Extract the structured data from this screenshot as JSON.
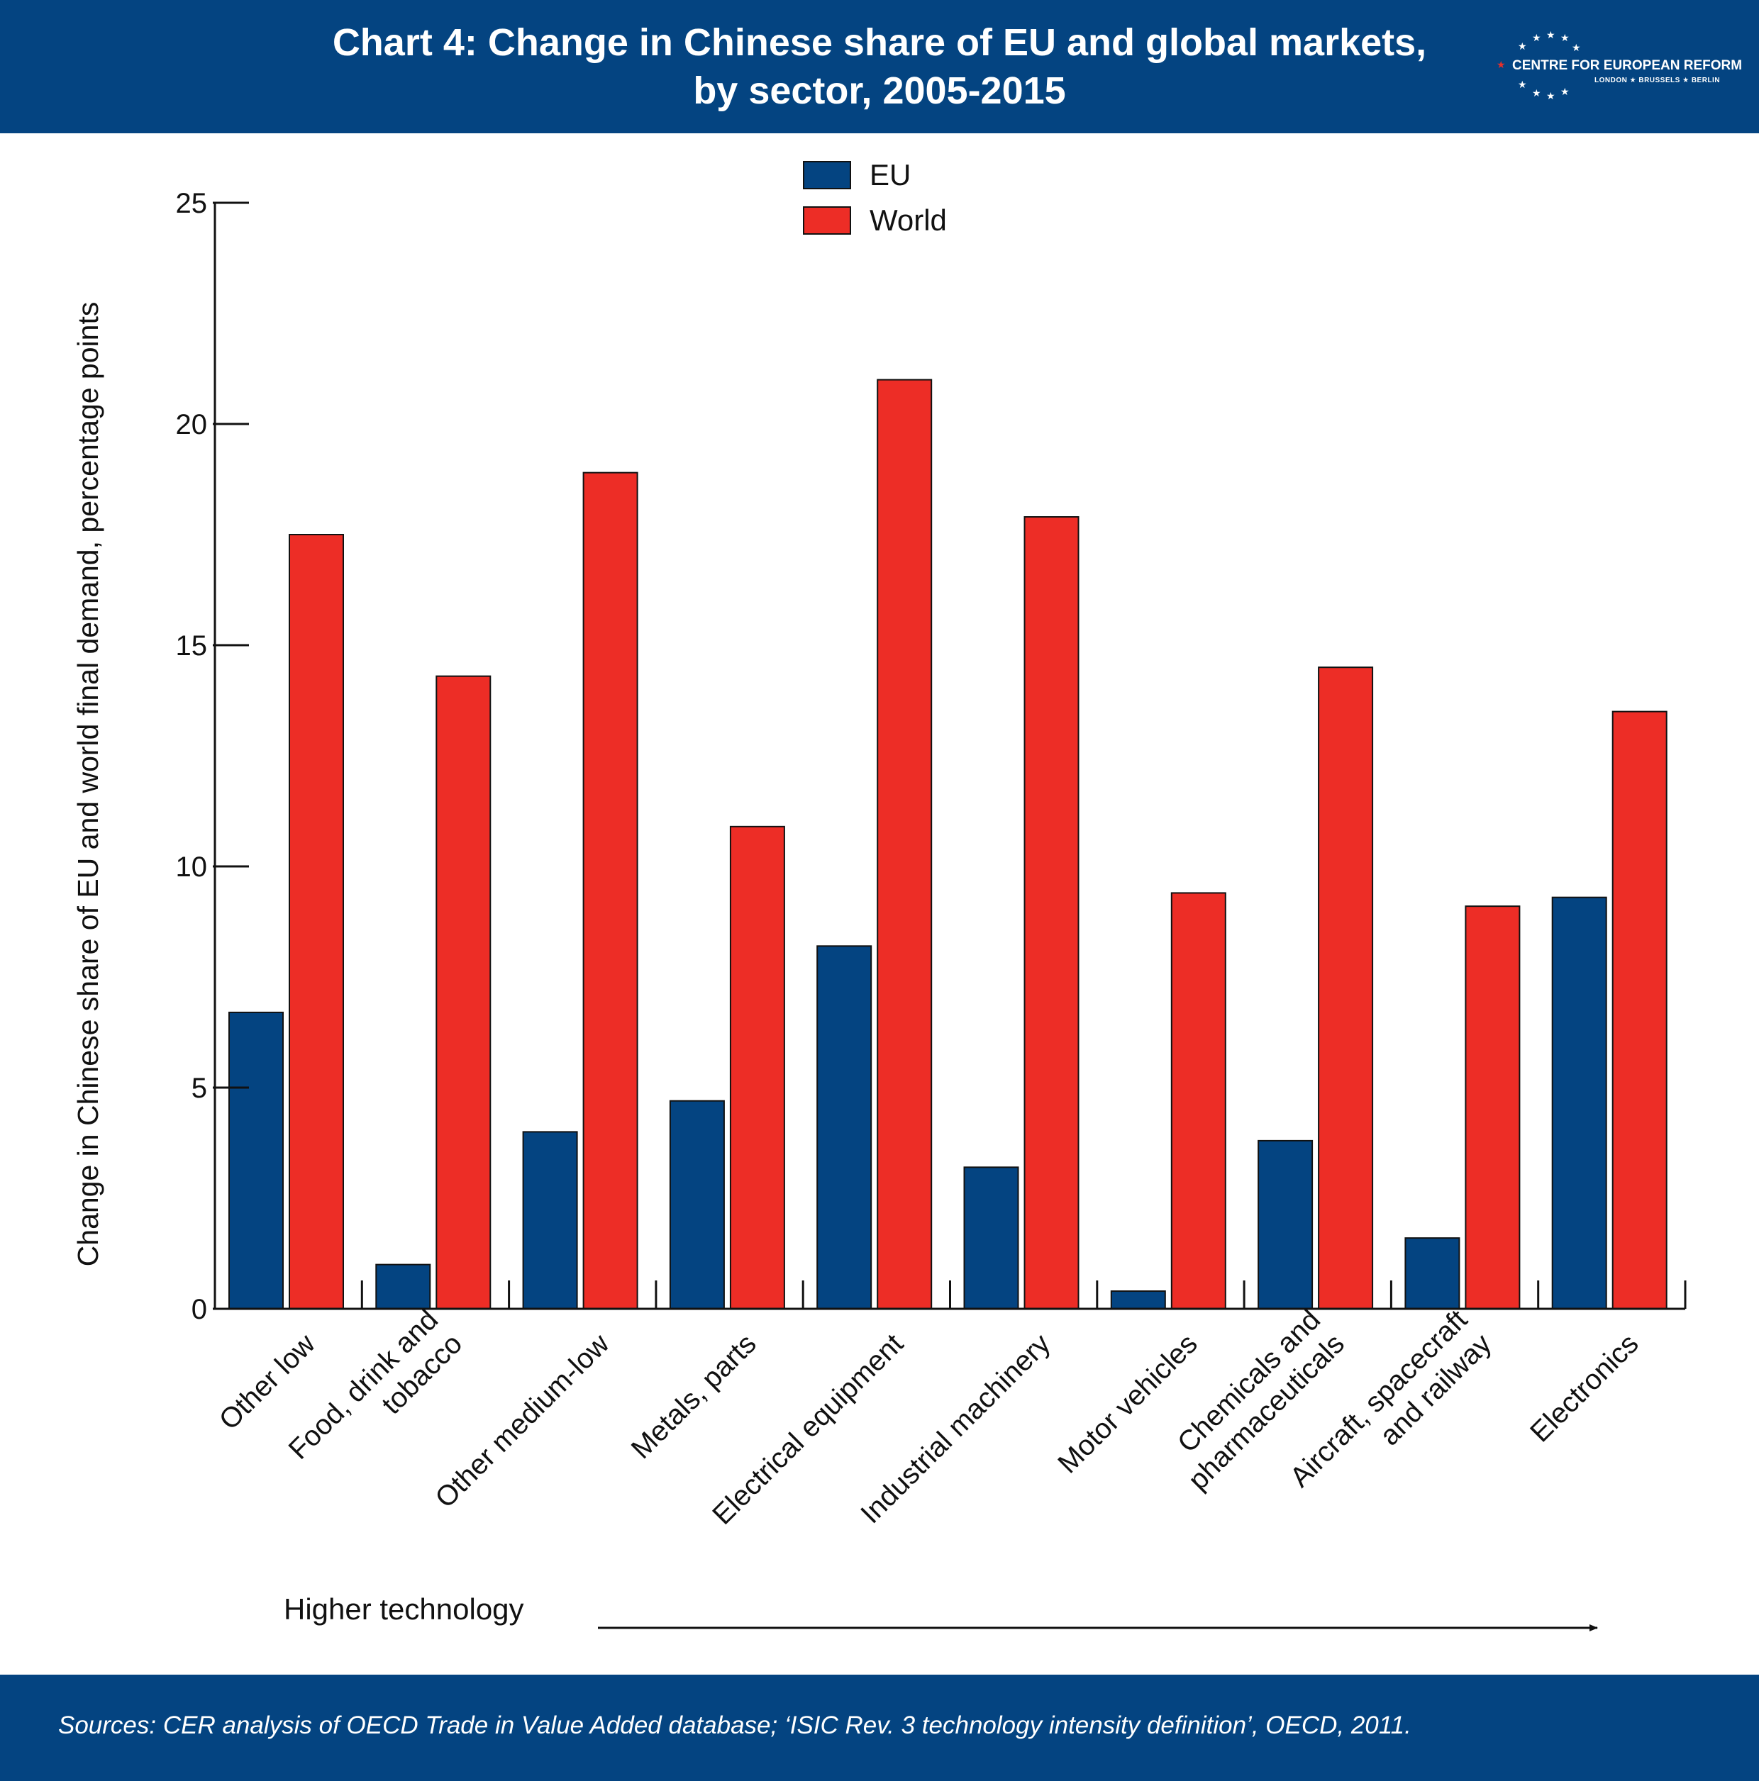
{
  "header": {
    "title_line1": "Chart 4: Change in Chinese share of EU and global markets,",
    "title_line2": "by sector, 2005-2015",
    "logo_name": "CENTRE FOR EUROPEAN REFORM",
    "logo_cities": "LONDON ★ BRUSSELS ★ BERLIN"
  },
  "footer": {
    "source": "Sources: CER analysis of OECD Trade in Value Added database; ‘ISIC Rev. 3 technology intensity definition’, OECD, 2011."
  },
  "colors": {
    "header_bg": "#044481",
    "eu": "#044481",
    "world": "#ed2d26"
  },
  "chart_data": {
    "type": "bar",
    "ylabel": "Change in Chinese share of EU and world final demand, percentage points",
    "ylim": [
      0,
      25
    ],
    "yticks": [
      0,
      5,
      10,
      15,
      20,
      25
    ],
    "legend_position": "top-center",
    "grid": false,
    "categories": [
      [
        "Other low"
      ],
      [
        "Food, drink and",
        "tobacco"
      ],
      [
        "Other medium-low"
      ],
      [
        "Metals, parts"
      ],
      [
        "Electrical equipment"
      ],
      [
        "Industrial machinery"
      ],
      [
        "Motor vehicles"
      ],
      [
        "Chemicals and",
        "pharmaceuticals"
      ],
      [
        "Aircraft, spacecraft",
        "and railway"
      ],
      [
        "Electronics"
      ]
    ],
    "series": [
      {
        "name": "EU",
        "values": [
          6.7,
          1.0,
          4.0,
          4.7,
          8.2,
          3.2,
          0.4,
          3.8,
          1.6,
          9.3
        ]
      },
      {
        "name": "World",
        "values": [
          17.5,
          14.3,
          18.9,
          10.9,
          21.0,
          17.9,
          9.4,
          14.5,
          9.1,
          13.5
        ]
      }
    ],
    "annotation": "Higher technology"
  }
}
